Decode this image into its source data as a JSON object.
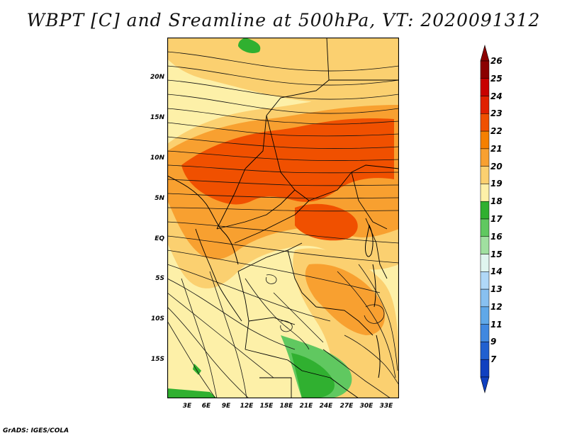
{
  "title": "WBPT [C] and Sreamline at 500hPa, VT: 2020091312",
  "footer": "GrADS: IGES/COLA",
  "lat_ticks": [
    "20N",
    "15N",
    "10N",
    "5N",
    "EQ",
    "5S",
    "10S",
    "15S"
  ],
  "lon_ticks": [
    "3E",
    "6E",
    "9E",
    "12E",
    "15E",
    "18E",
    "21E",
    "24E",
    "27E",
    "30E",
    "33E"
  ],
  "colorbar": {
    "labels": [
      "26",
      "25",
      "24",
      "23",
      "22",
      "21",
      "20",
      "19",
      "18",
      "17",
      "16",
      "15",
      "14",
      "13",
      "12",
      "11",
      "9",
      "7"
    ],
    "colors": [
      "#8b0000",
      "#c80000",
      "#e02000",
      "#f05000",
      "#f58000",
      "#f8a030",
      "#fbd070",
      "#fdf0a8",
      "#30b030",
      "#60c860",
      "#a0e0a0",
      "#dff5ef",
      "#b0d8f8",
      "#88c0f0",
      "#60a8e8",
      "#4088e0",
      "#2060d0",
      "#1040c0"
    ]
  },
  "map_colors": {
    "ocean": "#fdf0a8",
    "warm": "#fbd070",
    "orange": "#f8a030",
    "hot": "#f05000",
    "green": "#30b030",
    "light_green": "#60c860"
  }
}
